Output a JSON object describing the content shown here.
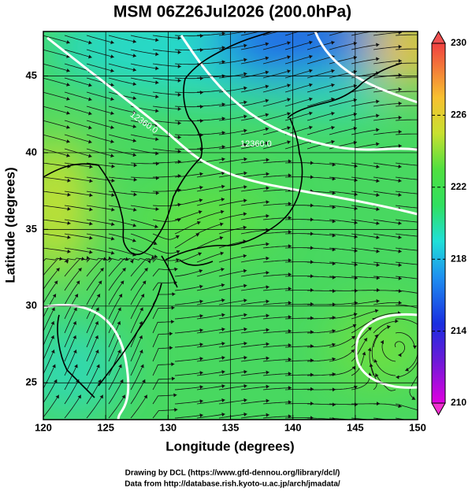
{
  "chart_data": {
    "type": "map",
    "title": "MSM 06Z26Jul2026 (200.0hPa)",
    "x_label": "Longitude (degrees)",
    "y_label": "Latitude  (degrees)",
    "xlim": [
      120,
      150
    ],
    "xticks": [
      120,
      125,
      130,
      135,
      140,
      145,
      150
    ],
    "ylim": [
      22.6,
      47.9
    ],
    "yticks": [
      25,
      30,
      35,
      40,
      45
    ],
    "grid": true,
    "colorbar": {
      "lim": [
        210,
        230
      ],
      "ticks": [
        210,
        214,
        218,
        222,
        226,
        230
      ]
    },
    "contour_labels": [
      "12360.0",
      "12360.0"
    ],
    "credits": [
      "Drawing by DCL (https://www.gfd-dennou.org/library/dcl/)",
      "Data from http://database.rish.kyoto-u.ac.jp/arch/jmadata/"
    ]
  }
}
